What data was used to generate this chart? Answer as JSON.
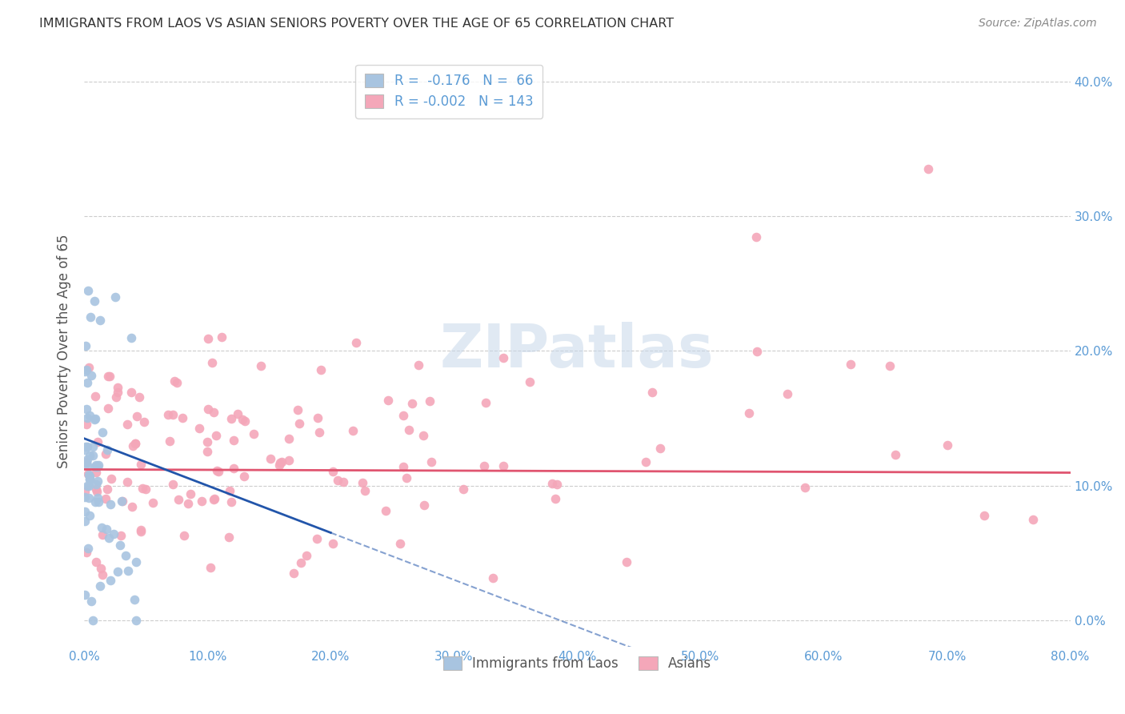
{
  "title": "IMMIGRANTS FROM LAOS VS ASIAN SENIORS POVERTY OVER THE AGE OF 65 CORRELATION CHART",
  "source": "Source: ZipAtlas.com",
  "ylabel": "Seniors Poverty Over the Age of 65",
  "xlabel_ticks": [
    "0.0%",
    "10.0%",
    "20.0%",
    "30.0%",
    "40.0%",
    "50.0%",
    "60.0%",
    "70.0%",
    "80.0%"
  ],
  "xlabel_vals": [
    0.0,
    0.1,
    0.2,
    0.3,
    0.4,
    0.5,
    0.6,
    0.7,
    0.8
  ],
  "ytick_labels": [
    "0.0%",
    "10.0%",
    "20.0%",
    "30.0%",
    "40.0%"
  ],
  "ytick_vals": [
    0.0,
    0.1,
    0.2,
    0.3,
    0.4
  ],
  "xlim": [
    0.0,
    0.8
  ],
  "ylim": [
    -0.02,
    0.42
  ],
  "laos_R": -0.176,
  "laos_N": 66,
  "asian_R": -0.002,
  "asian_N": 143,
  "laos_color": "#a8c4e0",
  "asian_color": "#f4a7b9",
  "laos_line_color": "#2255aa",
  "asian_line_color": "#e05570",
  "background_color": "#ffffff",
  "grid_color": "#cccccc",
  "title_color": "#333333",
  "axis_color": "#5b9bd5",
  "watermark": "ZIPatlas",
  "watermark_color": "#c8d8ea",
  "seed": 42
}
